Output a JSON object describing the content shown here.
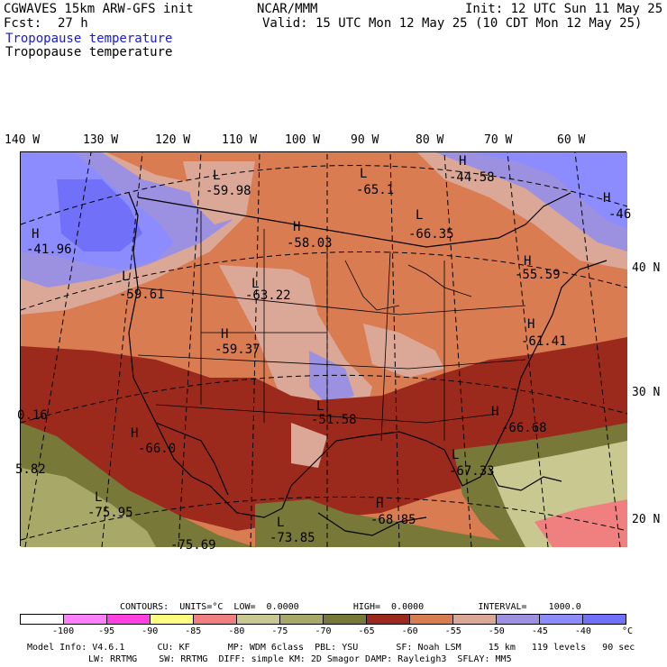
{
  "header": {
    "model_title": "CGWAVES 15km ARW-GFS init",
    "source": "NCAR/MMM",
    "init": "Init: 12 UTC Sun 11 May 25",
    "fcst_label": "Fcst:",
    "fcst_value": "27 h",
    "valid": "Valid: 15 UTC Mon 12 May 25 (10 CDT Mon 12 May 25)",
    "field_title_1": "Tropopause temperature",
    "field_title_2": "Tropopause temperature"
  },
  "map": {
    "lon_labels": [
      "140 W",
      "130 W",
      "120 W",
      "110 W",
      "100 W",
      "90 W",
      "80 W",
      "70 W",
      "60 W"
    ],
    "lat_labels": [
      "40 N",
      "30 N",
      "20 N"
    ],
    "extrema": [
      {
        "type": "H",
        "value": "-44.58"
      },
      {
        "type": "H",
        "value": "-46"
      },
      {
        "type": "L",
        "value": "-59.98"
      },
      {
        "type": "L",
        "value": "-65.1"
      },
      {
        "type": "H",
        "value": "-41.96"
      },
      {
        "type": "H",
        "value": "-58.03"
      },
      {
        "type": "L",
        "value": "-66.35"
      },
      {
        "type": "L",
        "value": "-59.61"
      },
      {
        "type": "L",
        "value": "-63.22"
      },
      {
        "type": "H",
        "value": "-55.59"
      },
      {
        "type": "H",
        "value": "-61.41"
      },
      {
        "type": "H",
        "value": "-59.37"
      },
      {
        "type": "",
        "value": "0.16"
      },
      {
        "type": "L",
        "value": "-51.58"
      },
      {
        "type": "H",
        "value": "-66.68"
      },
      {
        "type": "H",
        "value": "-66.0"
      },
      {
        "type": "L",
        "value": "-67.33"
      },
      {
        "type": "",
        "value": "5.82"
      },
      {
        "type": "L",
        "value": "-75.95"
      },
      {
        "type": "H",
        "value": "-68.85"
      },
      {
        "type": "L",
        "value": "-73.85"
      },
      {
        "type": "",
        "value": "-75.69"
      }
    ]
  },
  "contours": {
    "text": "CONTOURS:  UNITS=°C  LOW=  0.0000          HIGH=  0.0000          INTERVAL=    1000.0"
  },
  "colorbar": {
    "colors": [
      "#ffffff",
      "#ff80ff",
      "#ff40e0",
      "#ffff80",
      "#f08080",
      "#c8c890",
      "#a8a868",
      "#787838",
      "#9c2a1c",
      "#d97c52",
      "#dba898",
      "#9c90e0",
      "#8c8cff",
      "#7070f8"
    ],
    "tick_labels": [
      "-100",
      "-95",
      "-90",
      "-85",
      "-80",
      "-75",
      "-70",
      "-65",
      "-60",
      "-55",
      "-50",
      "-45",
      "-40"
    ],
    "unit": "°C"
  },
  "footer": {
    "line1": "Model Info: V4.6.1      CU: KF       MP: WDM 6class  PBL: YSU       SF: Noah LSM     15 km   119 levels   90 sec",
    "line2": "LW: RRTMG    SW: RRTMG  DIFF: simple KM: 2D Smagor DAMP: Rayleigh3  SFLAY: MM5"
  }
}
